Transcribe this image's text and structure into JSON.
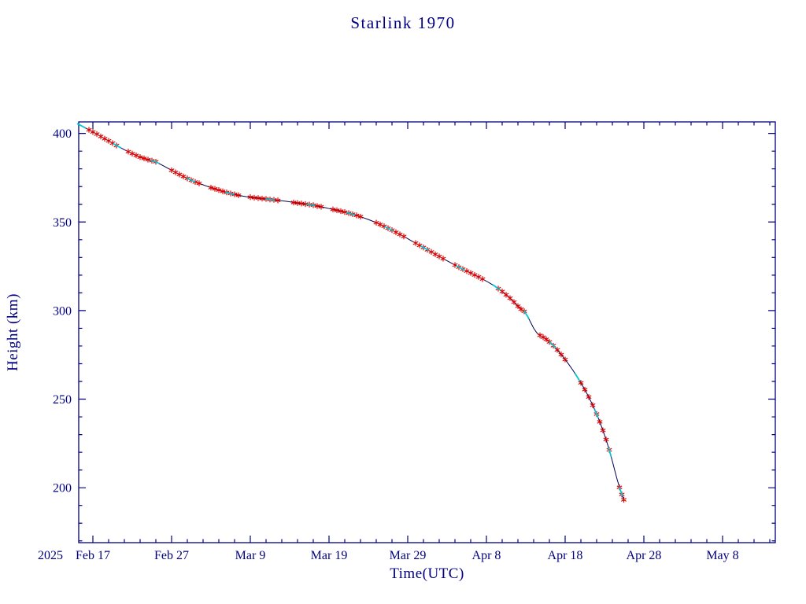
{
  "colors": {
    "background": "#ffffff",
    "axis": "#000080",
    "text": "#000080",
    "line": "#000050",
    "fit_line": "#00c8d0",
    "marker": "#d80000"
  },
  "chart_data": {
    "type": "line",
    "title": "Starlink 1970",
    "xlabel": "Time(UTC)",
    "ylabel": "Height (km)",
    "year_label": "2025",
    "grid": false,
    "x_day_reference": "Feb 15",
    "xlim_days": [
      0.2,
      88.7
    ],
    "ylim": [
      169,
      406.5
    ],
    "x_ticks": [
      {
        "day": 2,
        "label": "Feb 17"
      },
      {
        "day": 12,
        "label": "Feb 27"
      },
      {
        "day": 22,
        "label": "Mar 9"
      },
      {
        "day": 32,
        "label": "Mar 19"
      },
      {
        "day": 42,
        "label": "Mar 29"
      },
      {
        "day": 52,
        "label": "Apr 8"
      },
      {
        "day": 62,
        "label": "Apr 18"
      },
      {
        "day": 72,
        "label": "Apr 28"
      },
      {
        "day": 82,
        "label": "May 8"
      }
    ],
    "x_minor_step_days": 2,
    "y_ticks": [
      200,
      250,
      300,
      350,
      400
    ],
    "y_minor_step": 10,
    "points": [
      [
        0,
        405.5
      ],
      [
        0.5,
        404.4
      ],
      [
        1,
        403.2
      ],
      [
        1.5,
        402.0
      ],
      [
        2,
        400.8
      ],
      [
        2.5,
        399.6
      ],
      [
        3,
        398.3
      ],
      [
        3.5,
        397.0
      ],
      [
        4,
        395.8
      ],
      [
        4.5,
        394.5
      ],
      [
        5,
        393.2
      ],
      [
        5.5,
        392.0
      ],
      [
        6,
        390.8
      ],
      [
        6.5,
        389.7
      ],
      [
        7,
        388.6
      ],
      [
        7.5,
        387.6
      ],
      [
        8,
        386.6
      ],
      [
        8.5,
        385.9
      ],
      [
        9,
        385.2
      ],
      [
        9.5,
        384.6
      ],
      [
        10,
        384.0
      ],
      [
        10.5,
        382.8
      ],
      [
        11,
        381.6
      ],
      [
        11.5,
        380.4
      ],
      [
        12,
        379.2
      ],
      [
        12.5,
        378.0
      ],
      [
        13,
        376.8
      ],
      [
        13.5,
        375.7
      ],
      [
        14,
        374.6
      ],
      [
        14.5,
        373.6
      ],
      [
        15,
        372.6
      ],
      [
        15.5,
        371.8
      ],
      [
        16,
        371.0
      ],
      [
        16.5,
        370.2
      ],
      [
        17,
        369.4
      ],
      [
        17.5,
        368.7
      ],
      [
        18,
        368.0
      ],
      [
        18.5,
        367.3
      ],
      [
        19,
        366.7
      ],
      [
        19.5,
        366.1
      ],
      [
        20,
        365.6
      ],
      [
        20.5,
        365.1
      ],
      [
        21,
        364.7
      ],
      [
        21.5,
        364.3
      ],
      [
        22,
        364.0
      ],
      [
        22.5,
        363.7
      ],
      [
        23,
        363.5
      ],
      [
        23.5,
        363.2
      ],
      [
        24,
        363.0
      ],
      [
        24.5,
        362.7
      ],
      [
        25,
        362.5
      ],
      [
        25.5,
        362.2
      ],
      [
        26,
        362.0
      ],
      [
        26.5,
        361.7
      ],
      [
        27,
        361.4
      ],
      [
        27.5,
        361.0
      ],
      [
        28,
        360.7
      ],
      [
        28.5,
        360.4
      ],
      [
        29,
        360.1
      ],
      [
        29.5,
        359.8
      ],
      [
        30,
        359.5
      ],
      [
        30.5,
        359.0
      ],
      [
        31,
        358.6
      ],
      [
        31.5,
        358.1
      ],
      [
        32,
        357.6
      ],
      [
        32.5,
        357.1
      ],
      [
        33,
        356.6
      ],
      [
        33.5,
        356.1
      ],
      [
        34,
        355.6
      ],
      [
        34.5,
        355.0
      ],
      [
        35,
        354.4
      ],
      [
        35.5,
        353.7
      ],
      [
        36,
        353.0
      ],
      [
        36.5,
        352.2
      ],
      [
        37,
        351.4
      ],
      [
        37.5,
        350.5
      ],
      [
        38,
        349.6
      ],
      [
        38.5,
        348.6
      ],
      [
        39,
        347.6
      ],
      [
        39.5,
        346.5
      ],
      [
        40,
        345.4
      ],
      [
        40.5,
        344.2
      ],
      [
        41,
        343.0
      ],
      [
        41.5,
        341.8
      ],
      [
        42,
        340.6
      ],
      [
        42.5,
        339.3
      ],
      [
        43,
        338.1
      ],
      [
        43.5,
        336.8
      ],
      [
        44,
        335.6
      ],
      [
        44.5,
        334.3
      ],
      [
        45,
        333.1
      ],
      [
        45.5,
        331.8
      ],
      [
        46,
        330.6
      ],
      [
        46.5,
        329.3
      ],
      [
        47,
        328.1
      ],
      [
        47.5,
        326.9
      ],
      [
        48,
        325.7
      ],
      [
        48.5,
        324.5
      ],
      [
        49,
        323.4
      ],
      [
        49.5,
        322.3
      ],
      [
        50,
        321.2
      ],
      [
        50.5,
        320.1
      ],
      [
        51,
        319.0
      ],
      [
        51.5,
        317.8
      ],
      [
        52,
        316.6
      ],
      [
        52.5,
        315.3
      ],
      [
        53,
        314.0
      ],
      [
        53.5,
        312.4
      ],
      [
        54,
        310.8
      ],
      [
        54.5,
        308.9
      ],
      [
        55,
        307.0
      ],
      [
        55.5,
        304.8
      ],
      [
        56,
        302.5
      ],
      [
        56.4,
        300.8
      ],
      [
        56.8,
        299.6
      ],
      [
        57.2,
        297.0
      ],
      [
        57.6,
        293.5
      ],
      [
        58,
        290.0
      ],
      [
        58.4,
        287.5
      ],
      [
        58.8,
        286.0
      ],
      [
        59.2,
        285.0
      ],
      [
        59.6,
        283.8
      ],
      [
        60,
        282.3
      ],
      [
        60.5,
        280.2
      ],
      [
        61,
        277.8
      ],
      [
        61.5,
        275.2
      ],
      [
        62,
        272.4
      ],
      [
        62.5,
        269.4
      ],
      [
        63,
        266.2
      ],
      [
        63.5,
        262.8
      ],
      [
        64,
        259.2
      ],
      [
        64.5,
        255.4
      ],
      [
        65,
        251.2
      ],
      [
        65.5,
        246.6
      ],
      [
        66,
        241.6
      ],
      [
        66.4,
        237.2
      ],
      [
        66.8,
        232.4
      ],
      [
        67.2,
        227.2
      ],
      [
        67.6,
        221.4
      ],
      [
        68,
        215.0
      ],
      [
        68.3,
        209.8
      ],
      [
        68.6,
        204.8
      ],
      [
        68.9,
        200.2
      ],
      [
        69.2,
        196.2
      ],
      [
        69.45,
        193.2
      ]
    ]
  }
}
